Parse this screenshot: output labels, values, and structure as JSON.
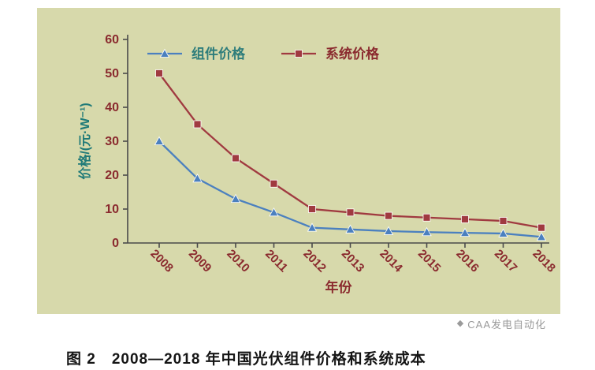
{
  "colors": {
    "page_bg": "#ffffff",
    "panel_bg": "#d7d9ab",
    "axis": "#4a4a4a",
    "tick_label": "#8a2a2e",
    "y_title": "#1f7a78",
    "x_title": "#8a2a2e",
    "module_series": "#4b80bf",
    "system_series": "#a03a40",
    "legend_module_text": "#2e7d7b",
    "legend_system_text": "#8a2a2e",
    "caption_text": "#151515",
    "watermark_text": "#9a9a9a"
  },
  "chart_data": {
    "type": "line",
    "title": "",
    "xlabel": "年份",
    "ylabel": "价格/(元·W⁻¹)",
    "x": [
      "2008",
      "2009",
      "2010",
      "2011",
      "2012",
      "2013",
      "2014",
      "2015",
      "2016",
      "2017",
      "2018"
    ],
    "series": [
      {
        "name": "组件价格",
        "marker": "triangle",
        "values": [
          30,
          19,
          13,
          9,
          4.5,
          4,
          3.5,
          3.2,
          3,
          2.8,
          1.8
        ]
      },
      {
        "name": "系统价格",
        "marker": "square",
        "values": [
          50,
          35,
          25,
          17.5,
          10,
          9,
          8,
          7.5,
          7,
          6.5,
          4.5
        ]
      }
    ],
    "ylim": [
      0,
      60
    ],
    "yticks": [
      0,
      10,
      20,
      30,
      40,
      50,
      60
    ],
    "grid": false,
    "legend_position": "top-inside"
  },
  "caption": "图 2　2008—2018 年中国光伏组件价格和系统成本",
  "watermark": {
    "logo": "◆",
    "text": "CAA发电自动化"
  }
}
